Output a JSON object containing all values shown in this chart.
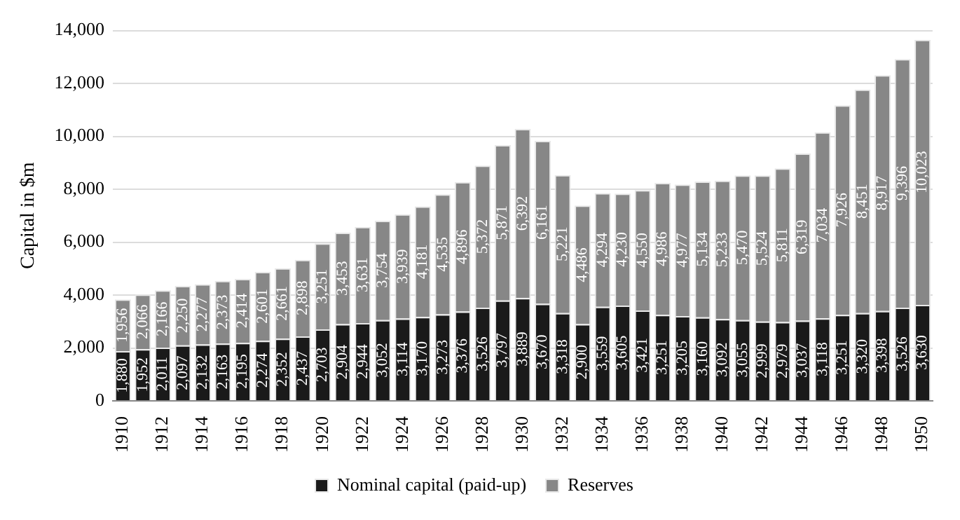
{
  "chart_data": {
    "type": "bar",
    "stacked": true,
    "ylabel": "Capital in $m",
    "categories": [
      "1910",
      null,
      "1912",
      null,
      "1914",
      null,
      "1916",
      null,
      "1918",
      null,
      "1920",
      null,
      "1922",
      null,
      "1924",
      null,
      "1926",
      null,
      "1928",
      null,
      "1930",
      null,
      "1932",
      null,
      "1934",
      null,
      "1936",
      null,
      "1938",
      null,
      "1940",
      null,
      "1942",
      null,
      "1944",
      null,
      "1946",
      null,
      "1948",
      null,
      "1950"
    ],
    "series": [
      {
        "name": "Nominal capital (paid-up)",
        "color": "#1a1a1a",
        "values": [
          1880,
          1952,
          2011,
          2097,
          2132,
          2163,
          2195,
          2274,
          2352,
          2437,
          2703,
          2904,
          2944,
          3052,
          3114,
          3170,
          3273,
          3376,
          3526,
          3797,
          3889,
          3670,
          3318,
          2900,
          3559,
          3605,
          3421,
          3251,
          3205,
          3160,
          3092,
          3055,
          2999,
          2979,
          3037,
          3118,
          3251,
          3320,
          3398,
          3526,
          3630
        ],
        "value_labels": [
          "1,880",
          "1,952",
          "2,011",
          "2,097",
          "2,132",
          "2,163",
          "2,195",
          "2,274",
          "2,352",
          "2,437",
          "2,703",
          "2,904",
          "2,944",
          "3,052",
          "3,114",
          "3,170",
          "3,273",
          "3,376",
          "3,526",
          "3,797",
          "3,889",
          "3,670",
          "3,318",
          "2,900",
          "3,559",
          "3,605",
          "3,421",
          "3,251",
          "3,205",
          "3,160",
          "3,092",
          "3,055",
          "2,999",
          "2,979",
          "3,037",
          "3,118",
          "3,251",
          "3,320",
          "3,398",
          "3,526",
          "3,630"
        ]
      },
      {
        "name": "Reserves",
        "color": "#878787",
        "values": [
          1956,
          2066,
          2166,
          2250,
          2277,
          2373,
          2414,
          2601,
          2661,
          2898,
          3251,
          3453,
          3631,
          3754,
          3939,
          4181,
          4535,
          4896,
          5372,
          5871,
          6392,
          6161,
          5221,
          4486,
          4294,
          4230,
          4550,
          4986,
          4977,
          5134,
          5233,
          5470,
          5524,
          5811,
          6319,
          7034,
          7926,
          8451,
          8917,
          9396,
          10023
        ],
        "value_labels": [
          "1,956",
          "2,066",
          "2,166",
          "2,250",
          "2,277",
          "2,373",
          "2,414",
          "2,601",
          "2,661",
          "2,898",
          "3,251",
          "3,453",
          "3,631",
          "3,754",
          "3,939",
          "4,181",
          "4,535",
          "4,896",
          "5,372",
          "5,871",
          "6,392",
          "6,161",
          "5,221",
          "4,486",
          "4,294",
          "4,230",
          "4,550",
          "4,986",
          "4,977",
          "5,134",
          "5,233",
          "5,470",
          "5,524",
          "5,811",
          "6,319",
          "7,034",
          "7,926",
          "8,451",
          "8,917",
          "9,396",
          "10,023"
        ]
      }
    ],
    "ylim": [
      0,
      14000
    ],
    "yticks": [
      0,
      {
        "value": 2000,
        "label": "2,000"
      },
      {
        "value": 4000,
        "label": "4,000"
      },
      {
        "value": 6000,
        "label": "6,000"
      },
      {
        "value": 8000,
        "label": "8,000"
      },
      {
        "value": 10000,
        "label": "10,000"
      },
      {
        "value": 12000,
        "label": "12,000"
      },
      {
        "value": 14000,
        "label": "14,000"
      }
    ],
    "grid": "y",
    "legend": "bottom"
  }
}
